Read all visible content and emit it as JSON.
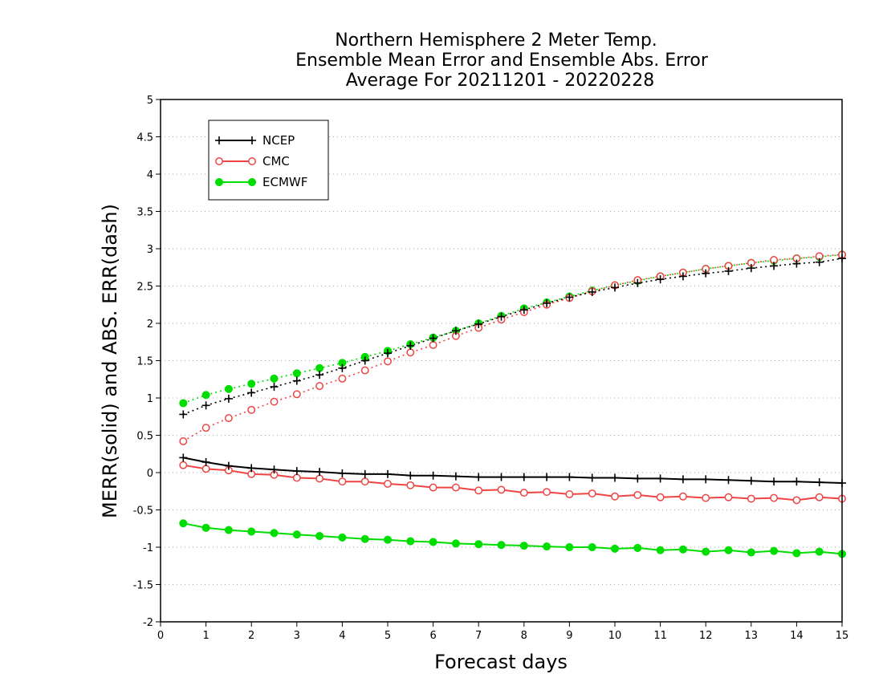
{
  "chart_data": {
    "type": "line",
    "title_lines": [
      "Northern Hemisphere 2 Meter Temp.",
      "Ensemble Mean Error and Ensemble Abs. Error",
      "Average For 20211201 - 20220228"
    ],
    "xlabel": "Forecast days",
    "ylabel": "MERR(solid) and ABS. ERR(dash)",
    "xlim": [
      0,
      15
    ],
    "ylim": [
      -2,
      5
    ],
    "xticks": [
      0,
      1,
      2,
      3,
      4,
      5,
      6,
      7,
      8,
      9,
      10,
      11,
      12,
      13,
      14,
      15
    ],
    "yticks": [
      -2,
      -1.5,
      -1,
      -0.5,
      0,
      0.5,
      1,
      1.5,
      2,
      2.5,
      3,
      3.5,
      4,
      4.5,
      5
    ],
    "ytick_labels": [
      "-2",
      "-1.5",
      "-1",
      "-0.5",
      "0",
      "0.5",
      "1",
      "1.5",
      "2",
      "2.5",
      "3",
      "3.5",
      "4",
      "4.5",
      "5"
    ],
    "xtick_labels": [
      "0",
      "1",
      "2",
      "3",
      "4",
      "5",
      "6",
      "7",
      "8",
      "9",
      "10",
      "11",
      "12",
      "13",
      "14",
      "15"
    ],
    "grid": "horizontal dotted",
    "legend_position": "top-left",
    "x": [
      0.5,
      1,
      1.5,
      2,
      2.5,
      3,
      3.5,
      4,
      4.5,
      5,
      5.5,
      6,
      6.5,
      7,
      7.5,
      8,
      8.5,
      9,
      9.5,
      10,
      10.5,
      11,
      11.5,
      12,
      12.5,
      13,
      13.5,
      14,
      14.5,
      15
    ],
    "series": [
      {
        "name": "NCEP",
        "color": "#000000",
        "marker": "plus",
        "merr": [
          0.2,
          0.14,
          0.09,
          0.06,
          0.04,
          0.02,
          0.01,
          -0.01,
          -0.02,
          -0.02,
          -0.04,
          -0.04,
          -0.05,
          -0.06,
          -0.06,
          -0.06,
          -0.06,
          -0.06,
          -0.07,
          -0.07,
          -0.08,
          -0.08,
          -0.09,
          -0.09,
          -0.1,
          -0.11,
          -0.12,
          -0.12,
          -0.13,
          -0.14
        ],
        "abs_err": [
          0.78,
          0.9,
          0.99,
          1.07,
          1.15,
          1.23,
          1.31,
          1.4,
          1.5,
          1.6,
          1.7,
          1.8,
          1.9,
          1.99,
          2.09,
          2.18,
          2.27,
          2.35,
          2.42,
          2.48,
          2.54,
          2.59,
          2.63,
          2.67,
          2.7,
          2.74,
          2.77,
          2.8,
          2.82,
          2.87
        ]
      },
      {
        "name": "CMC",
        "color": "#ee4444",
        "marker": "open-circle",
        "merr": [
          0.1,
          0.05,
          0.03,
          -0.02,
          -0.03,
          -0.07,
          -0.08,
          -0.12,
          -0.12,
          -0.15,
          -0.17,
          -0.2,
          -0.2,
          -0.24,
          -0.23,
          -0.27,
          -0.26,
          -0.29,
          -0.28,
          -0.32,
          -0.3,
          -0.33,
          -0.32,
          -0.34,
          -0.33,
          -0.35,
          -0.34,
          -0.37,
          -0.33,
          -0.35
        ],
        "abs_err": [
          0.42,
          0.6,
          0.73,
          0.84,
          0.95,
          1.05,
          1.16,
          1.26,
          1.37,
          1.49,
          1.61,
          1.71,
          1.83,
          1.94,
          2.05,
          2.15,
          2.25,
          2.34,
          2.43,
          2.51,
          2.58,
          2.63,
          2.68,
          2.73,
          2.77,
          2.81,
          2.85,
          2.87,
          2.9,
          2.92
        ]
      },
      {
        "name": "ECMWF",
        "color": "#00dd00",
        "marker": "filled-circle",
        "merr": [
          -0.68,
          -0.74,
          -0.77,
          -0.79,
          -0.81,
          -0.83,
          -0.85,
          -0.87,
          -0.89,
          -0.9,
          -0.92,
          -0.93,
          -0.95,
          -0.96,
          -0.97,
          -0.98,
          -0.99,
          -1.0,
          -1.0,
          -1.02,
          -1.01,
          -1.04,
          -1.03,
          -1.06,
          -1.04,
          -1.07,
          -1.05,
          -1.08,
          -1.06,
          -1.09
        ],
        "abs_err": [
          0.93,
          1.04,
          1.12,
          1.19,
          1.26,
          1.33,
          1.4,
          1.47,
          1.55,
          1.63,
          1.72,
          1.81,
          1.9,
          2.0,
          2.1,
          2.2,
          2.28,
          2.36,
          2.44,
          2.51,
          2.57,
          2.63,
          2.68,
          2.73,
          2.77,
          2.81,
          2.84,
          2.87,
          2.89,
          2.92
        ]
      }
    ]
  }
}
